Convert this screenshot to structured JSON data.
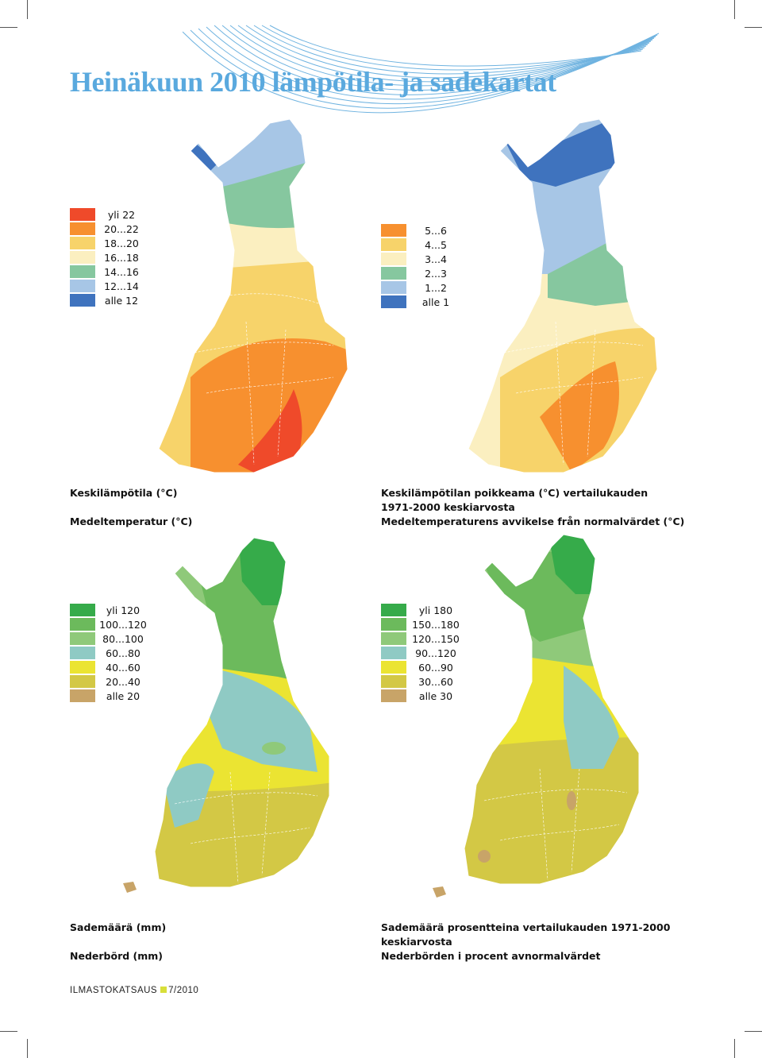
{
  "title": "Heinäkuun 2010 lämpötila- ja sadekartat",
  "maps": [
    {
      "legend": [
        {
          "label": "yli 22",
          "color": "#ef4a2a"
        },
        {
          "label": "20...22",
          "color": "#f7902f"
        },
        {
          "label": "18...20",
          "color": "#f7d36a"
        },
        {
          "label": "16...18",
          "color": "#fbefc0"
        },
        {
          "label": "14...16",
          "color": "#86c79f"
        },
        {
          "label": "12...14",
          "color": "#a7c6e6"
        },
        {
          "label": "alle 12",
          "color": "#3f73be"
        }
      ],
      "caption_fi": "Keskilämpötila (°C)",
      "caption_sv": "Medeltemperatur (°C)"
    },
    {
      "legend": [
        {
          "label": "5...6",
          "color": "#f7902f"
        },
        {
          "label": "4...5",
          "color": "#f7d36a"
        },
        {
          "label": "3...4",
          "color": "#fbefc0"
        },
        {
          "label": "2...3",
          "color": "#86c79f"
        },
        {
          "label": "1...2",
          "color": "#a7c6e6"
        },
        {
          "label": "alle 1",
          "color": "#3f73be"
        }
      ],
      "caption_fi": "Keskilämpötilan poikkeama (°C) vertailukauden 1971-2000 keskiarvosta",
      "caption_sv": "Medeltemperaturens avvikelse från normalvärdet (°C)"
    },
    {
      "legend": [
        {
          "label": "yli 120",
          "color": "#36ab4a"
        },
        {
          "label": "100...120",
          "color": "#6cba5c"
        },
        {
          "label": "80...100",
          "color": "#8fc97a"
        },
        {
          "label": "60...80",
          "color": "#8fcac4"
        },
        {
          "label": "40...60",
          "color": "#ebe432"
        },
        {
          "label": "20...40",
          "color": "#d3c845"
        },
        {
          "label": "alle 20",
          "color": "#c8a468"
        }
      ],
      "caption_fi": "Sademäärä (mm)",
      "caption_sv": "Nederbörd (mm)"
    },
    {
      "legend": [
        {
          "label": "yli 180",
          "color": "#36ab4a"
        },
        {
          "label": "150...180",
          "color": "#6cba5c"
        },
        {
          "label": "120...150",
          "color": "#8fc97a"
        },
        {
          "label": "90...120",
          "color": "#8fcac4"
        },
        {
          "label": "60...90",
          "color": "#ebe432"
        },
        {
          "label": "30...60",
          "color": "#d3c845"
        },
        {
          "label": "alle 30",
          "color": "#c8a468"
        }
      ],
      "caption_fi": "Sademäärä prosentteina vertailukauden 1971-2000 keskiarvosta",
      "caption_sv": "Nederbörden i procent avnormalvärdet"
    }
  ],
  "footer": {
    "left": "ILMASTOKATSAUS",
    "right": "7/2010",
    "square_color": "#d8df3a"
  }
}
